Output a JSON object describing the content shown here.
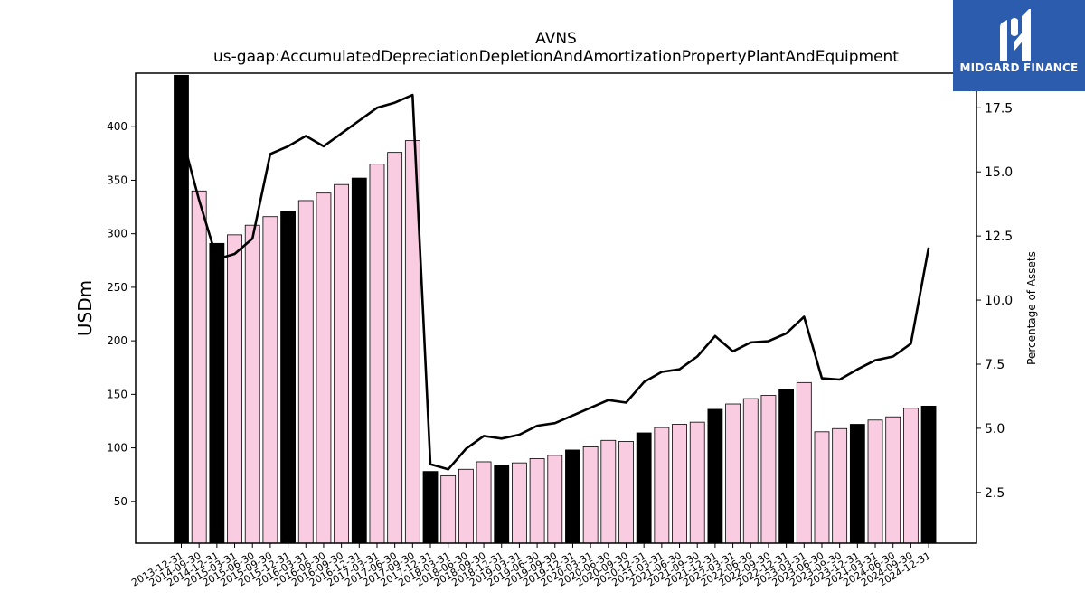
{
  "chart_data": {
    "type": "bar+line",
    "title": "AVNS",
    "subtitle": "us-gaap:AccumulatedDepreciationDepletionAndAmortizationPropertyPlantAndEquipment",
    "ylabel": "USDm",
    "ylabel_right": "Percentage of Assets",
    "ylim": [
      11,
      450
    ],
    "ylim_right": [
      0.52,
      18.85
    ],
    "yticks": [
      50,
      100,
      150,
      200,
      250,
      300,
      350,
      400
    ],
    "yticks_right": [
      2.5,
      5.0,
      7.5,
      10.0,
      12.5,
      15.0,
      17.5
    ],
    "yticks_right_labels": [
      "2.5",
      "5.0",
      "7.5",
      "10.0",
      "12.5",
      "15.0",
      "17.5"
    ],
    "categories": [
      "2013-12-31",
      "2014-09-30",
      "2014-12-31",
      "2015-03-31",
      "2015-06-30",
      "2015-09-30",
      "2015-12-31",
      "2016-03-31",
      "2016-06-30",
      "2016-09-30",
      "2016-12-31",
      "2017-03-31",
      "2017-06-30",
      "2017-09-30",
      "2017-12-31",
      "2018-03-31",
      "2018-06-30",
      "2018-09-30",
      "2018-12-31",
      "2019-03-31",
      "2019-06-30",
      "2019-09-30",
      "2019-12-31",
      "2020-03-31",
      "2020-06-30",
      "2020-09-30",
      "2020-12-31",
      "2021-03-31",
      "2021-06-30",
      "2021-09-30",
      "2021-12-31",
      "2022-03-31",
      "2022-06-30",
      "2022-09-30",
      "2022-12-31",
      "2023-03-31",
      "2023-06-30",
      "2023-09-30",
      "2023-12-31",
      "2024-03-31",
      "2024-06-30",
      "2024-09-30",
      "2024-12-31"
    ],
    "series": [
      {
        "name": "",
        "type": "bar",
        "values": [
          448,
          340,
          291,
          299,
          308,
          316,
          321,
          331,
          338,
          346,
          352,
          365,
          376,
          387,
          78,
          74,
          80,
          87,
          84,
          86,
          90,
          93,
          98,
          101,
          107,
          106,
          114,
          119,
          122,
          124,
          136,
          141,
          146,
          149,
          155,
          161,
          115,
          118,
          122,
          126,
          129,
          137,
          139
        ],
        "highlight": [
          true,
          false,
          true,
          false,
          false,
          false,
          true,
          false,
          false,
          false,
          true,
          false,
          false,
          false,
          true,
          false,
          false,
          false,
          true,
          false,
          false,
          false,
          true,
          false,
          false,
          false,
          true,
          false,
          false,
          false,
          true,
          false,
          false,
          false,
          true,
          false,
          false,
          false,
          true,
          false,
          false,
          false,
          true
        ]
      },
      {
        "name": "",
        "type": "line",
        "axis": "right",
        "values": [
          16.5,
          13.9,
          11.6,
          11.8,
          12.4,
          15.7,
          16.0,
          16.4,
          16.0,
          16.5,
          17.0,
          17.5,
          17.7,
          18.0,
          3.6,
          3.4,
          4.2,
          4.7,
          4.6,
          4.75,
          5.1,
          5.2,
          5.5,
          5.8,
          6.1,
          6.0,
          6.8,
          7.2,
          7.3,
          7.8,
          8.6,
          8.0,
          8.35,
          8.4,
          8.7,
          9.35,
          6.95,
          6.9,
          7.3,
          7.65,
          7.8,
          8.3,
          12.05
        ]
      }
    ],
    "colors": {
      "bar_highlight": "#000000",
      "bar_normal": "#f9cce2",
      "bar_edge": "#000000",
      "line": "#000000"
    },
    "grid": false,
    "legend": "none"
  },
  "logo": {
    "text": "MIDGARD FINANCE",
    "background": "#2b5cad"
  }
}
